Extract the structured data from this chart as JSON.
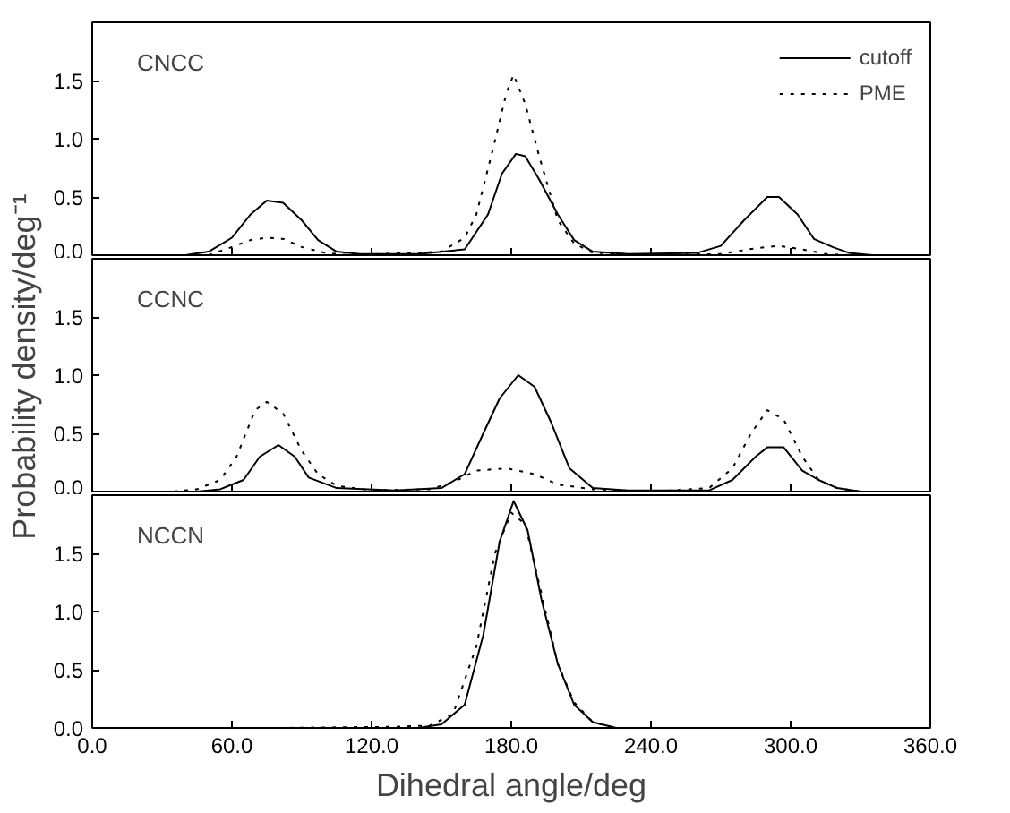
{
  "chart_data": [
    {
      "type": "line",
      "annotations": [
        "CNCC"
      ],
      "xlim": [
        0,
        360
      ],
      "ylim": [
        0,
        2.0
      ],
      "xticks": [
        0,
        60,
        120,
        180,
        240,
        300,
        360
      ],
      "yticks": [
        {
          "value": 0,
          "label": "0.0"
        },
        {
          "value": 0.5,
          "label": "0.5"
        },
        {
          "value": 1.0,
          "label": "1.0"
        },
        {
          "value": 1.5,
          "label": "1.5"
        }
      ],
      "tick_labels": "y",
      "grid": false,
      "legend": "top right",
      "series": [
        {
          "name": "cutoff",
          "color": "#000000",
          "line_style": "solid",
          "x": [
            40,
            50,
            60,
            68,
            75,
            82,
            90,
            97,
            105,
            115,
            140,
            160,
            170,
            176,
            182,
            186,
            192,
            200,
            207,
            215,
            230,
            260,
            270,
            280,
            290,
            295,
            303,
            310,
            318,
            325,
            335
          ],
          "values": [
            0,
            0.03,
            0.15,
            0.35,
            0.47,
            0.45,
            0.3,
            0.13,
            0.03,
            0.01,
            0.01,
            0.05,
            0.35,
            0.7,
            0.87,
            0.85,
            0.65,
            0.35,
            0.13,
            0.03,
            0.01,
            0.02,
            0.08,
            0.3,
            0.5,
            0.5,
            0.35,
            0.14,
            0.07,
            0.02,
            0
          ]
        },
        {
          "name": "PME",
          "color": "#000000",
          "line_style": "dotted",
          "x": [
            50,
            60,
            68,
            75,
            82,
            90,
            100,
            110,
            150,
            160,
            165,
            172,
            178,
            181,
            186,
            192,
            200,
            207,
            215,
            240,
            270,
            285,
            295,
            305,
            315,
            325
          ],
          "values": [
            0,
            0.07,
            0.13,
            0.15,
            0.14,
            0.07,
            0.02,
            0,
            0.03,
            0.15,
            0.35,
            0.9,
            1.4,
            1.55,
            1.3,
            0.85,
            0.3,
            0.1,
            0.02,
            0,
            0.01,
            0.06,
            0.08,
            0.05,
            0.01,
            0
          ]
        }
      ]
    },
    {
      "type": "line",
      "annotations": [
        "CCNC"
      ],
      "ylabel": "Probability density/deg⁻¹",
      "xlim": [
        0,
        360
      ],
      "ylim": [
        0,
        2.0
      ],
      "xticks": [
        0,
        60,
        120,
        180,
        240,
        300,
        360
      ],
      "yticks": [
        {
          "value": 0,
          "label": "0.0"
        },
        {
          "value": 0.5,
          "label": "0.5"
        },
        {
          "value": 1.0,
          "label": "1.0"
        },
        {
          "value": 1.5,
          "label": "1.5"
        }
      ],
      "tick_labels": "y",
      "grid": false,
      "series": [
        {
          "color": "#000000",
          "line_style": "solid",
          "x": [
            45,
            55,
            65,
            72,
            80,
            87,
            93,
            105,
            130,
            150,
            160,
            168,
            175,
            183,
            190,
            197,
            205,
            215,
            230,
            265,
            275,
            285,
            290,
            297,
            305,
            312,
            320,
            330
          ],
          "values": [
            0,
            0.02,
            0.1,
            0.3,
            0.4,
            0.3,
            0.12,
            0.03,
            0.01,
            0.03,
            0.15,
            0.5,
            0.8,
            1.0,
            0.9,
            0.6,
            0.2,
            0.03,
            0.01,
            0.01,
            0.1,
            0.3,
            0.38,
            0.38,
            0.18,
            0.1,
            0.03,
            0
          ]
        },
        {
          "color": "#000000",
          "line_style": "dotted",
          "x": [
            35,
            45,
            55,
            62,
            70,
            75,
            82,
            90,
            97,
            105,
            120,
            145,
            155,
            165,
            178,
            190,
            200,
            215,
            240,
            265,
            275,
            283,
            290,
            297,
            305,
            312,
            320,
            330
          ],
          "values": [
            0,
            0.02,
            0.1,
            0.3,
            0.7,
            0.77,
            0.67,
            0.35,
            0.15,
            0.05,
            0.01,
            0.02,
            0.08,
            0.18,
            0.2,
            0.15,
            0.06,
            0.02,
            0,
            0.03,
            0.2,
            0.5,
            0.7,
            0.62,
            0.3,
            0.1,
            0.03,
            0
          ]
        }
      ]
    },
    {
      "type": "line",
      "annotations": [
        "NCCN"
      ],
      "xlabel": "Dihedral angle/deg",
      "xlim": [
        0,
        360
      ],
      "ylim": [
        0,
        2.0
      ],
      "xticks": [
        {
          "value": 0,
          "label": "0.0"
        },
        {
          "value": 60,
          "label": "60.0"
        },
        {
          "value": 120,
          "label": "120.0"
        },
        {
          "value": 180,
          "label": "180.0"
        },
        {
          "value": 240,
          "label": "240.0"
        },
        {
          "value": 300,
          "label": "300.0"
        },
        {
          "value": 360,
          "label": "360.0"
        }
      ],
      "yticks": [
        {
          "value": 0,
          "label": "0.0"
        },
        {
          "value": 0.5,
          "label": "0.5"
        },
        {
          "value": 1.0,
          "label": "1.0"
        },
        {
          "value": 1.5,
          "label": "1.5"
        }
      ],
      "grid": false,
      "series": [
        {
          "color": "#000000",
          "line_style": "solid",
          "x": [
            140,
            150,
            160,
            168,
            175,
            181,
            187,
            193,
            200,
            207,
            215,
            225
          ],
          "values": [
            0,
            0.03,
            0.2,
            0.8,
            1.6,
            1.95,
            1.7,
            1.1,
            0.55,
            0.2,
            0.05,
            0
          ]
        },
        {
          "color": "#000000",
          "line_style": "dotted",
          "x": [
            80,
            130,
            145,
            155,
            165,
            173,
            180,
            186,
            193,
            200,
            207,
            215,
            225
          ],
          "values": [
            0,
            0.01,
            0.02,
            0.12,
            0.7,
            1.5,
            1.85,
            1.75,
            1.15,
            0.55,
            0.22,
            0.05,
            0
          ]
        }
      ]
    }
  ]
}
